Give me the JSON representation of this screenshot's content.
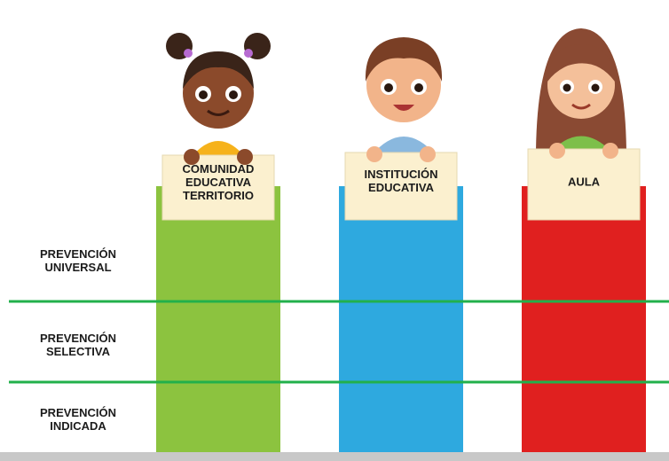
{
  "rows": [
    {
      "label": [
        "PREVENCIÓN",
        "UNIVERSAL"
      ]
    },
    {
      "label": [
        "PREVENCIÓN",
        "SELECTIVA"
      ]
    },
    {
      "label": [
        "PREVENCIÓN",
        "INDICADA"
      ]
    }
  ],
  "columns": [
    {
      "label": [
        "COMUNIDAD",
        "EDUCATIVA",
        "TERRITORIO"
      ],
      "color": "#8cc33f"
    },
    {
      "label": [
        "INSTITUCIÓN",
        "EDUCATIVA"
      ],
      "color": "#2ea9df"
    },
    {
      "label": [
        "AULA"
      ],
      "color": "#e0201f"
    }
  ]
}
